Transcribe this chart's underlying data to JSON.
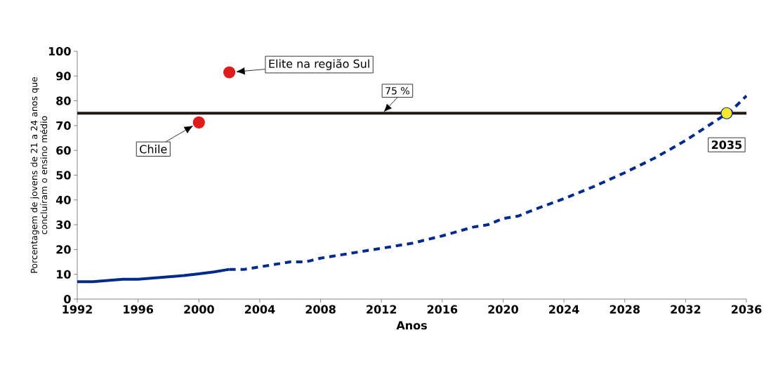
{
  "chart_data": {
    "type": "line",
    "xlabel": "Anos",
    "ylabel": "Porcentagem de jovens de 21 a 24 anos que concluíram o ensino médio",
    "xlim": [
      1992,
      2036
    ],
    "ylim": [
      0,
      100
    ],
    "xticks": [
      1992,
      1996,
      2000,
      2004,
      2008,
      2012,
      2016,
      2020,
      2024,
      2028,
      2032,
      2036
    ],
    "yticks": [
      0,
      10,
      20,
      30,
      40,
      50,
      60,
      70,
      80,
      90,
      100
    ],
    "series": [
      {
        "color": "#002a8a",
        "line_style": "solid",
        "marker": "none",
        "x": [
          1992,
          1993,
          1994,
          1995,
          1996,
          1997,
          1998,
          1999,
          2000,
          2001,
          2002
        ],
        "values": [
          7,
          7,
          7.5,
          8,
          8,
          8.5,
          9,
          9.5,
          10.2,
          11,
          12
        ]
      },
      {
        "color": "#002a8a",
        "line_style": "dashed",
        "marker": "none",
        "x": [
          2002,
          2003,
          2004,
          2006,
          2007,
          2008,
          2010,
          2012,
          2014,
          2016,
          2018,
          2019,
          2020,
          2021,
          2022,
          2024,
          2026,
          2028,
          2030,
          2032,
          2034,
          2035,
          2036
        ],
        "values": [
          12,
          12,
          13,
          15,
          15,
          16.5,
          18.5,
          20.5,
          22.5,
          25.5,
          29,
          30,
          32.5,
          33.5,
          36,
          40.5,
          45.5,
          51,
          57,
          64,
          72,
          76,
          82
        ]
      },
      {
        "type": "scatter",
        "color": "#e01b1b",
        "marker": "circle",
        "x": [
          2000,
          2002
        ],
        "values": [
          71.3,
          91.5
        ]
      },
      {
        "type": "scatter",
        "color": "#f7e92a",
        "marker": "circle",
        "x": [
          2034.7
        ],
        "values": [
          75
        ]
      }
    ],
    "ref_lines": [
      {
        "axis": "y",
        "value": 75,
        "label": "75 %",
        "color": "#231815",
        "line_style": "solid"
      }
    ],
    "annotations": [
      "Chile",
      "Elite na região Sul",
      "**2035**"
    ],
    "grid": false
  }
}
